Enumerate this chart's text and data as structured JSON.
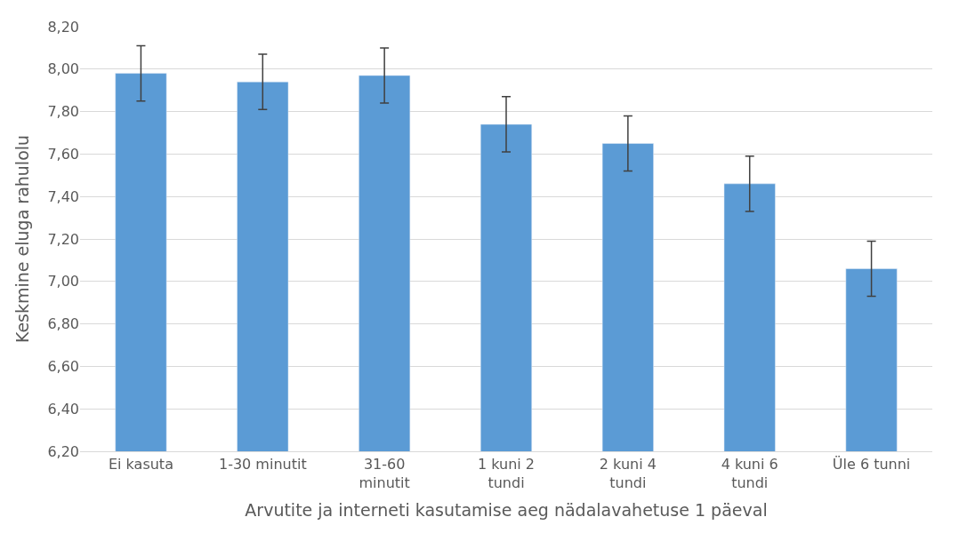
{
  "chart_data": {
    "type": "bar",
    "xlabel": "Arvutite ja interneti kasutamise aeg nädalavahetuse 1 päeval",
    "ylabel": "Keskmine eluga rahulolu",
    "categories": [
      "Ei kasuta",
      "1-30 minutit",
      "31-60\nminutit",
      "1 kuni 2\ntundi",
      "2 kuni 4\ntundi",
      "4 kuni 6\ntundi",
      "Üle 6 tunni"
    ],
    "values": [
      7.98,
      7.94,
      7.97,
      7.74,
      7.65,
      7.46,
      7.06
    ],
    "errors": [
      0.13,
      0.13,
      0.13,
      0.13,
      0.13,
      0.13,
      0.13
    ],
    "color": "#5b9bd5",
    "ylim": [
      6.2,
      8.2
    ],
    "yticks": [
      {
        "value": 6.2,
        "label": "6,20"
      },
      {
        "value": 6.4,
        "label": "6,40"
      },
      {
        "value": 6.6,
        "label": "6,60"
      },
      {
        "value": 6.8,
        "label": "6,80"
      },
      {
        "value": 7.0,
        "label": "7,00"
      },
      {
        "value": 7.2,
        "label": "7,20"
      },
      {
        "value": 7.4,
        "label": "7,40"
      },
      {
        "value": 7.6,
        "label": "7,60"
      },
      {
        "value": 7.8,
        "label": "7,80"
      },
      {
        "value": 8.0,
        "label": "8,00"
      },
      {
        "value": 8.2,
        "label": "8,20"
      }
    ],
    "grid": "y"
  }
}
